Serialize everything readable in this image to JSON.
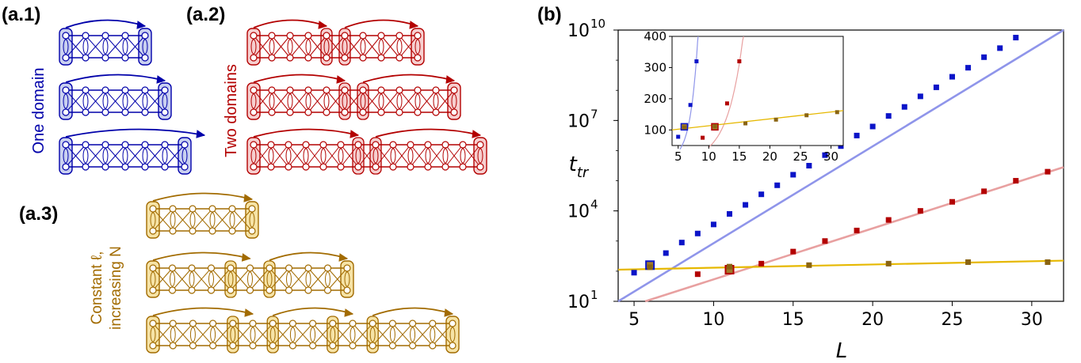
{
  "panels": {
    "a1": {
      "label": "(a.1)",
      "side_text": "One domain",
      "color": "#0000aa",
      "fill": "#c9d0f0"
    },
    "a2": {
      "label": "(a.2)",
      "side_text": "Two domains",
      "color": "#b30000",
      "fill": "#f6cfcf"
    },
    "a3": {
      "label": "(a.3)",
      "side_text_line1": "Constant ℓ,",
      "side_text_line2": "increasing N",
      "color": "#a26b00",
      "fill": "#f6e3a6"
    },
    "b": {
      "label": "(b)"
    }
  },
  "chart_data": [
    {
      "type": "scatter",
      "scale": "log-y",
      "xlabel": "L",
      "ylabel": "t_tr",
      "xlim": [
        4,
        32
      ],
      "ylim_exp": [
        1,
        10
      ],
      "x_ticks": [
        5,
        10,
        15,
        20,
        25,
        30
      ],
      "y_ticks_exp": [
        1,
        4,
        7,
        10
      ],
      "y_tick_labels": [
        {
          "base": "10",
          "exp": "1"
        },
        {
          "base": "10",
          "exp": "4"
        },
        {
          "base": "10",
          "exp": "7"
        },
        {
          "base": "10",
          "exp": "10"
        }
      ],
      "grid": false,
      "series": [
        {
          "color": "#0b14c8",
          "line_color": "#8f95ea",
          "values_log10": [
            [
              5,
              1.95
            ],
            [
              6,
              2.2
            ],
            [
              7,
              2.6
            ],
            [
              8,
              2.95
            ],
            [
              9,
              3.25
            ],
            [
              10,
              3.55
            ],
            [
              11,
              3.9
            ],
            [
              12,
              4.2
            ],
            [
              13,
              4.55
            ],
            [
              14,
              4.85
            ],
            [
              15,
              5.2
            ],
            [
              16,
              5.5
            ],
            [
              17,
              5.85
            ],
            [
              18,
              6.15
            ],
            [
              19,
              6.5
            ],
            [
              20,
              6.8
            ],
            [
              21,
              7.15
            ],
            [
              22,
              7.45
            ],
            [
              23,
              7.8
            ],
            [
              24,
              8.1
            ],
            [
              25,
              8.45
            ],
            [
              26,
              8.75
            ],
            [
              27,
              9.1
            ],
            [
              28,
              9.4
            ],
            [
              29,
              9.75
            ]
          ],
          "fit_log10": [
            [
              4,
              1.0
            ],
            [
              32,
              10.0
            ]
          ],
          "highlight_x": 6
        },
        {
          "color": "#b30000",
          "line_color": "#e8a0a0",
          "values_log10": [
            [
              9,
              1.9
            ],
            [
              11,
              2.05
            ],
            [
              13,
              2.25
            ],
            [
              15,
              2.65
            ],
            [
              17,
              3.0
            ],
            [
              19,
              3.35
            ],
            [
              21,
              3.7
            ],
            [
              23,
              4.0
            ],
            [
              25,
              4.3
            ],
            [
              27,
              4.65
            ],
            [
              29,
              5.0
            ],
            [
              31,
              5.3
            ]
          ],
          "fit_log10": [
            [
              5.7,
              1.0
            ],
            [
              32,
              5.45
            ]
          ],
          "highlight_x": 11
        },
        {
          "color": "#8a6412",
          "line_color": "#e6b800",
          "values_log10": [
            [
              6,
              2.13
            ],
            [
              11,
              2.15
            ],
            [
              16,
              2.2
            ],
            [
              21,
              2.25
            ],
            [
              26,
              2.3
            ],
            [
              31,
              2.3
            ]
          ],
          "fit_log10": [
            [
              4,
              2.05
            ],
            [
              32,
              2.35
            ]
          ]
        }
      ]
    },
    {
      "type": "scatter",
      "title": "",
      "xlim": [
        4,
        32
      ],
      "ylim": [
        50,
        400
      ],
      "x_ticks": [
        5,
        10,
        15,
        20,
        25,
        30
      ],
      "y_ticks": [
        100,
        200,
        300,
        400
      ],
      "series": [
        {
          "color": "#0b14c8",
          "points": [
            [
              5,
              78
            ],
            [
              6,
              110
            ],
            [
              7,
              180
            ],
            [
              8,
              320
            ]
          ]
        },
        {
          "color": "#b30000",
          "points": [
            [
              9,
              75
            ],
            [
              11,
              110
            ],
            [
              13,
              185
            ],
            [
              15,
              320
            ]
          ]
        },
        {
          "color": "#8a6412",
          "points": [
            [
              6,
              108
            ],
            [
              11,
              112
            ],
            [
              16,
              121
            ],
            [
              21,
              133
            ],
            [
              26,
              147
            ],
            [
              31,
              157
            ]
          ]
        }
      ]
    }
  ]
}
